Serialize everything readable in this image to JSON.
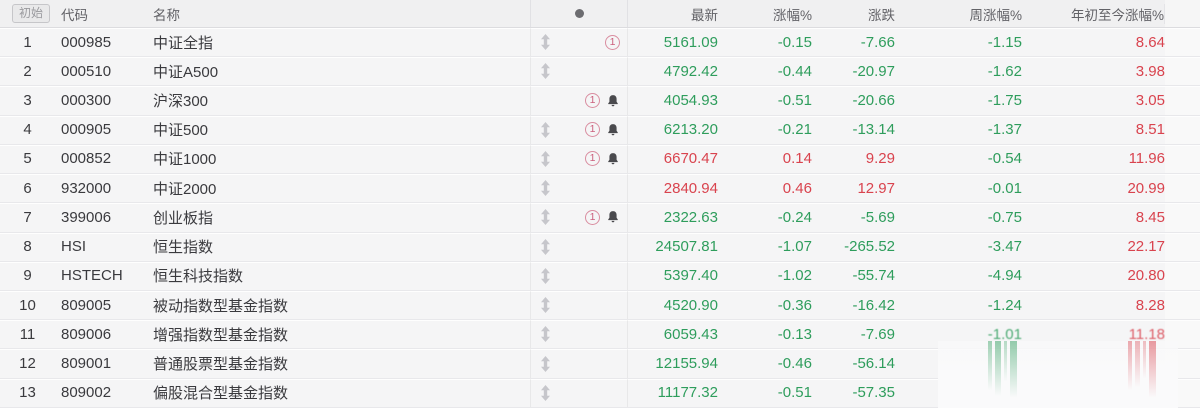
{
  "header": {
    "initial_badge": "初始",
    "code": "代码",
    "name": "名称",
    "icon_dot": "dot",
    "latest": "最新",
    "pct": "涨幅%",
    "chg": "涨跌",
    "week": "周涨幅%",
    "ytd": "年初至今涨幅%"
  },
  "icons": {
    "circled_one_text": "1"
  },
  "colors": {
    "up": "#d9434e",
    "down": "#2e9d5c"
  },
  "rows": [
    {
      "num": "1",
      "code": "000985",
      "name": "中证全指",
      "drag": true,
      "one": true,
      "bell": false,
      "latest": "5161.09",
      "pct": "-0.15",
      "chg": "-7.66",
      "week": "-1.15",
      "ytd": "8.64",
      "faded": false
    },
    {
      "num": "2",
      "code": "000510",
      "name": "中证A500",
      "drag": true,
      "one": false,
      "bell": false,
      "latest": "4792.42",
      "pct": "-0.44",
      "chg": "-20.97",
      "week": "-1.62",
      "ytd": "3.98",
      "faded": false
    },
    {
      "num": "3",
      "code": "000300",
      "name": "沪深300",
      "drag": false,
      "one": true,
      "bell": true,
      "latest": "4054.93",
      "pct": "-0.51",
      "chg": "-20.66",
      "week": "-1.75",
      "ytd": "3.05",
      "faded": false
    },
    {
      "num": "4",
      "code": "000905",
      "name": "中证500",
      "drag": true,
      "one": true,
      "bell": true,
      "latest": "6213.20",
      "pct": "-0.21",
      "chg": "-13.14",
      "week": "-1.37",
      "ytd": "8.51",
      "faded": false
    },
    {
      "num": "5",
      "code": "000852",
      "name": "中证1000",
      "drag": true,
      "one": true,
      "bell": true,
      "latest": "6670.47",
      "pct": "0.14",
      "chg": "9.29",
      "week": "-0.54",
      "ytd": "11.96",
      "faded": false
    },
    {
      "num": "6",
      "code": "932000",
      "name": "中证2000",
      "drag": true,
      "one": false,
      "bell": false,
      "latest": "2840.94",
      "pct": "0.46",
      "chg": "12.97",
      "week": "-0.01",
      "ytd": "20.99",
      "faded": false
    },
    {
      "num": "7",
      "code": "399006",
      "name": "创业板指",
      "drag": true,
      "one": true,
      "bell": true,
      "latest": "2322.63",
      "pct": "-0.24",
      "chg": "-5.69",
      "week": "-0.75",
      "ytd": "8.45",
      "faded": false
    },
    {
      "num": "8",
      "code": "HSI",
      "name": "恒生指数",
      "drag": true,
      "one": false,
      "bell": false,
      "latest": "24507.81",
      "pct": "-1.07",
      "chg": "-265.52",
      "week": "-3.47",
      "ytd": "22.17",
      "faded": false
    },
    {
      "num": "9",
      "code": "HSTECH",
      "name": "恒生科技指数",
      "drag": true,
      "one": false,
      "bell": false,
      "latest": "5397.40",
      "pct": "-1.02",
      "chg": "-55.74",
      "week": "-4.94",
      "ytd": "20.80",
      "faded": false
    },
    {
      "num": "10",
      "code": "809005",
      "name": "被动指数型基金指数",
      "drag": true,
      "one": false,
      "bell": false,
      "latest": "4520.90",
      "pct": "-0.36",
      "chg": "-16.42",
      "week": "-1.24",
      "ytd": "8.28",
      "faded": false
    },
    {
      "num": "11",
      "code": "809006",
      "name": "增强指数型基金指数",
      "drag": true,
      "one": false,
      "bell": false,
      "latest": "6059.43",
      "pct": "-0.13",
      "chg": "-7.69",
      "week": "-1.01",
      "ytd": "11.18",
      "faded": true
    },
    {
      "num": "12",
      "code": "809001",
      "name": "普通股票型基金指数",
      "drag": true,
      "one": false,
      "bell": false,
      "latest": "12155.94",
      "pct": "-0.46",
      "chg": "-56.14",
      "week": "",
      "ytd": "",
      "faded": false
    },
    {
      "num": "13",
      "code": "809002",
      "name": "偏股混合型基金指数",
      "drag": true,
      "one": false,
      "bell": false,
      "latest": "11177.32",
      "pct": "-0.51",
      "chg": "-57.35",
      "week": "",
      "ytd": "",
      "faded": false
    }
  ]
}
